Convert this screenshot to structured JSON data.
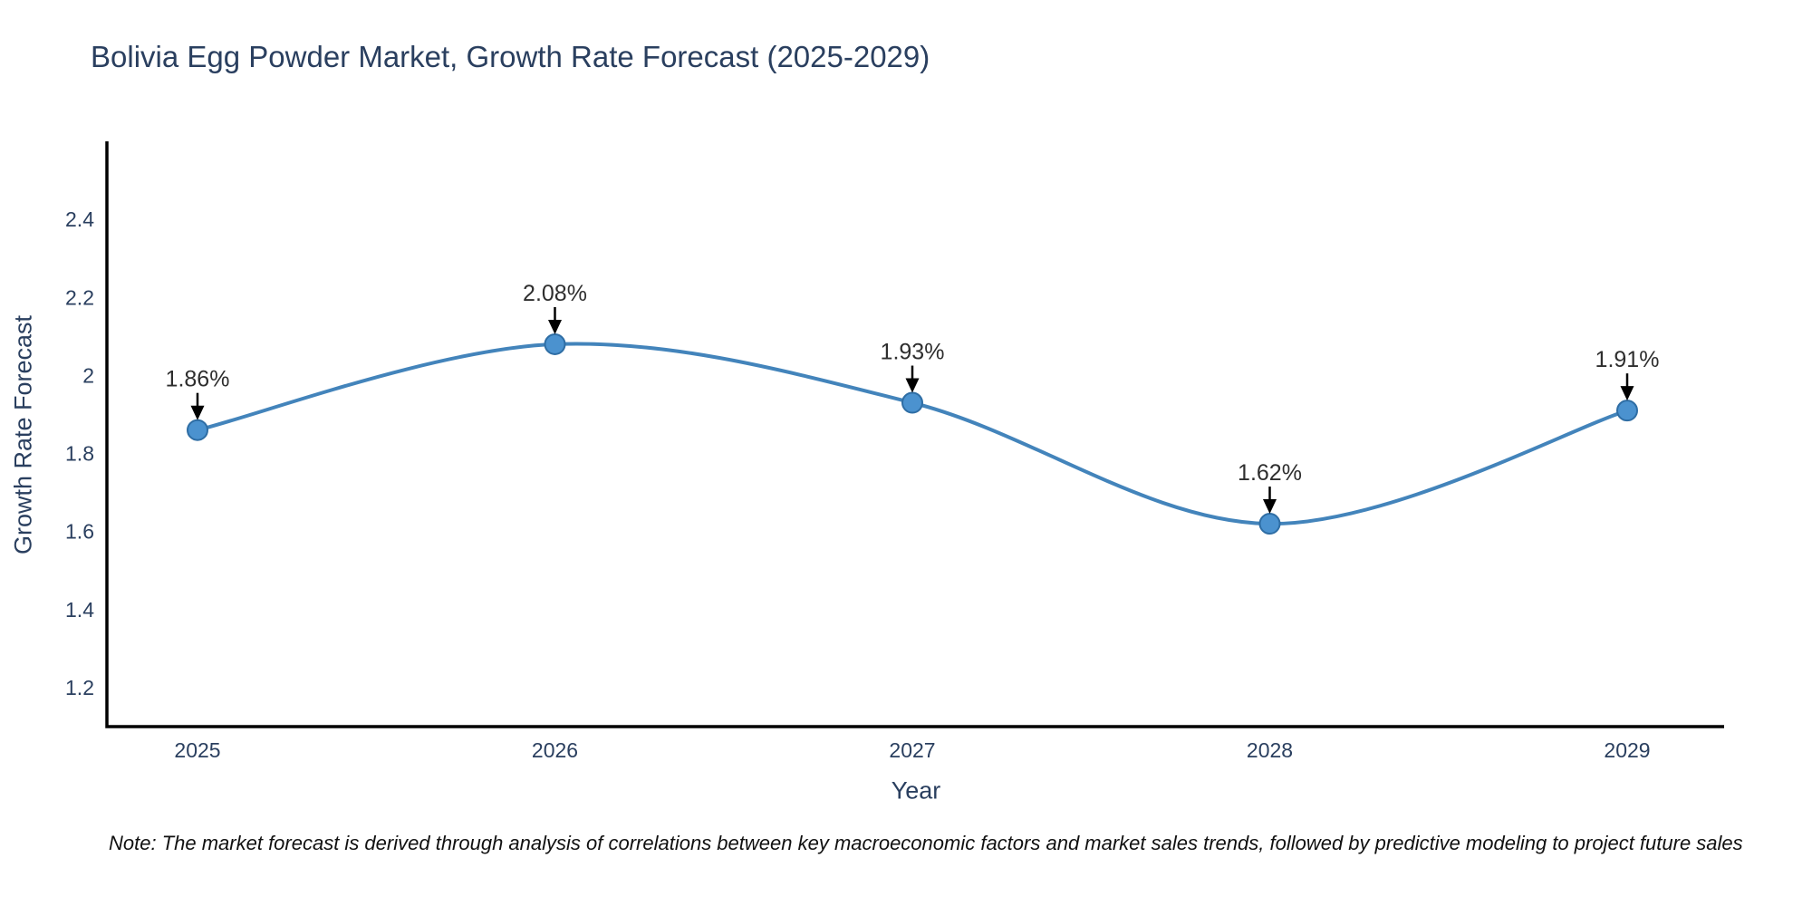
{
  "note": "Note: The market forecast is derived through analysis of correlations between key macroeconomic factors and market sales trends, followed by predictive modeling to project future sales",
  "chart_data": {
    "type": "line",
    "title": "Bolivia Egg Powder Market, Growth Rate Forecast (2025-2029)",
    "xlabel": "Year",
    "ylabel": "Growth Rate Forecast",
    "x": [
      2025,
      2026,
      2027,
      2028,
      2029
    ],
    "values": [
      1.86,
      2.08,
      1.93,
      1.62,
      1.91
    ],
    "point_labels": [
      "1.86%",
      "2.08%",
      "1.93%",
      "1.62%",
      "1.91%"
    ],
    "yticks": [
      2.4,
      2.2,
      2,
      1.8,
      1.6,
      1.4,
      1.2
    ],
    "ylim": [
      1.1,
      2.6
    ],
    "grid": false,
    "legend": "none",
    "line_smoothing": "spline",
    "colors": {
      "line": "#4384bb",
      "marker_fill": "#4b92cf",
      "marker_edge": "#2e6da4",
      "axis": "#000000",
      "tick_text": "#2a3f5f",
      "title_text": "#2a3f5f",
      "annotation_text": "#2e2e2e",
      "arrow": "#000000",
      "background": "#ffffff"
    }
  }
}
